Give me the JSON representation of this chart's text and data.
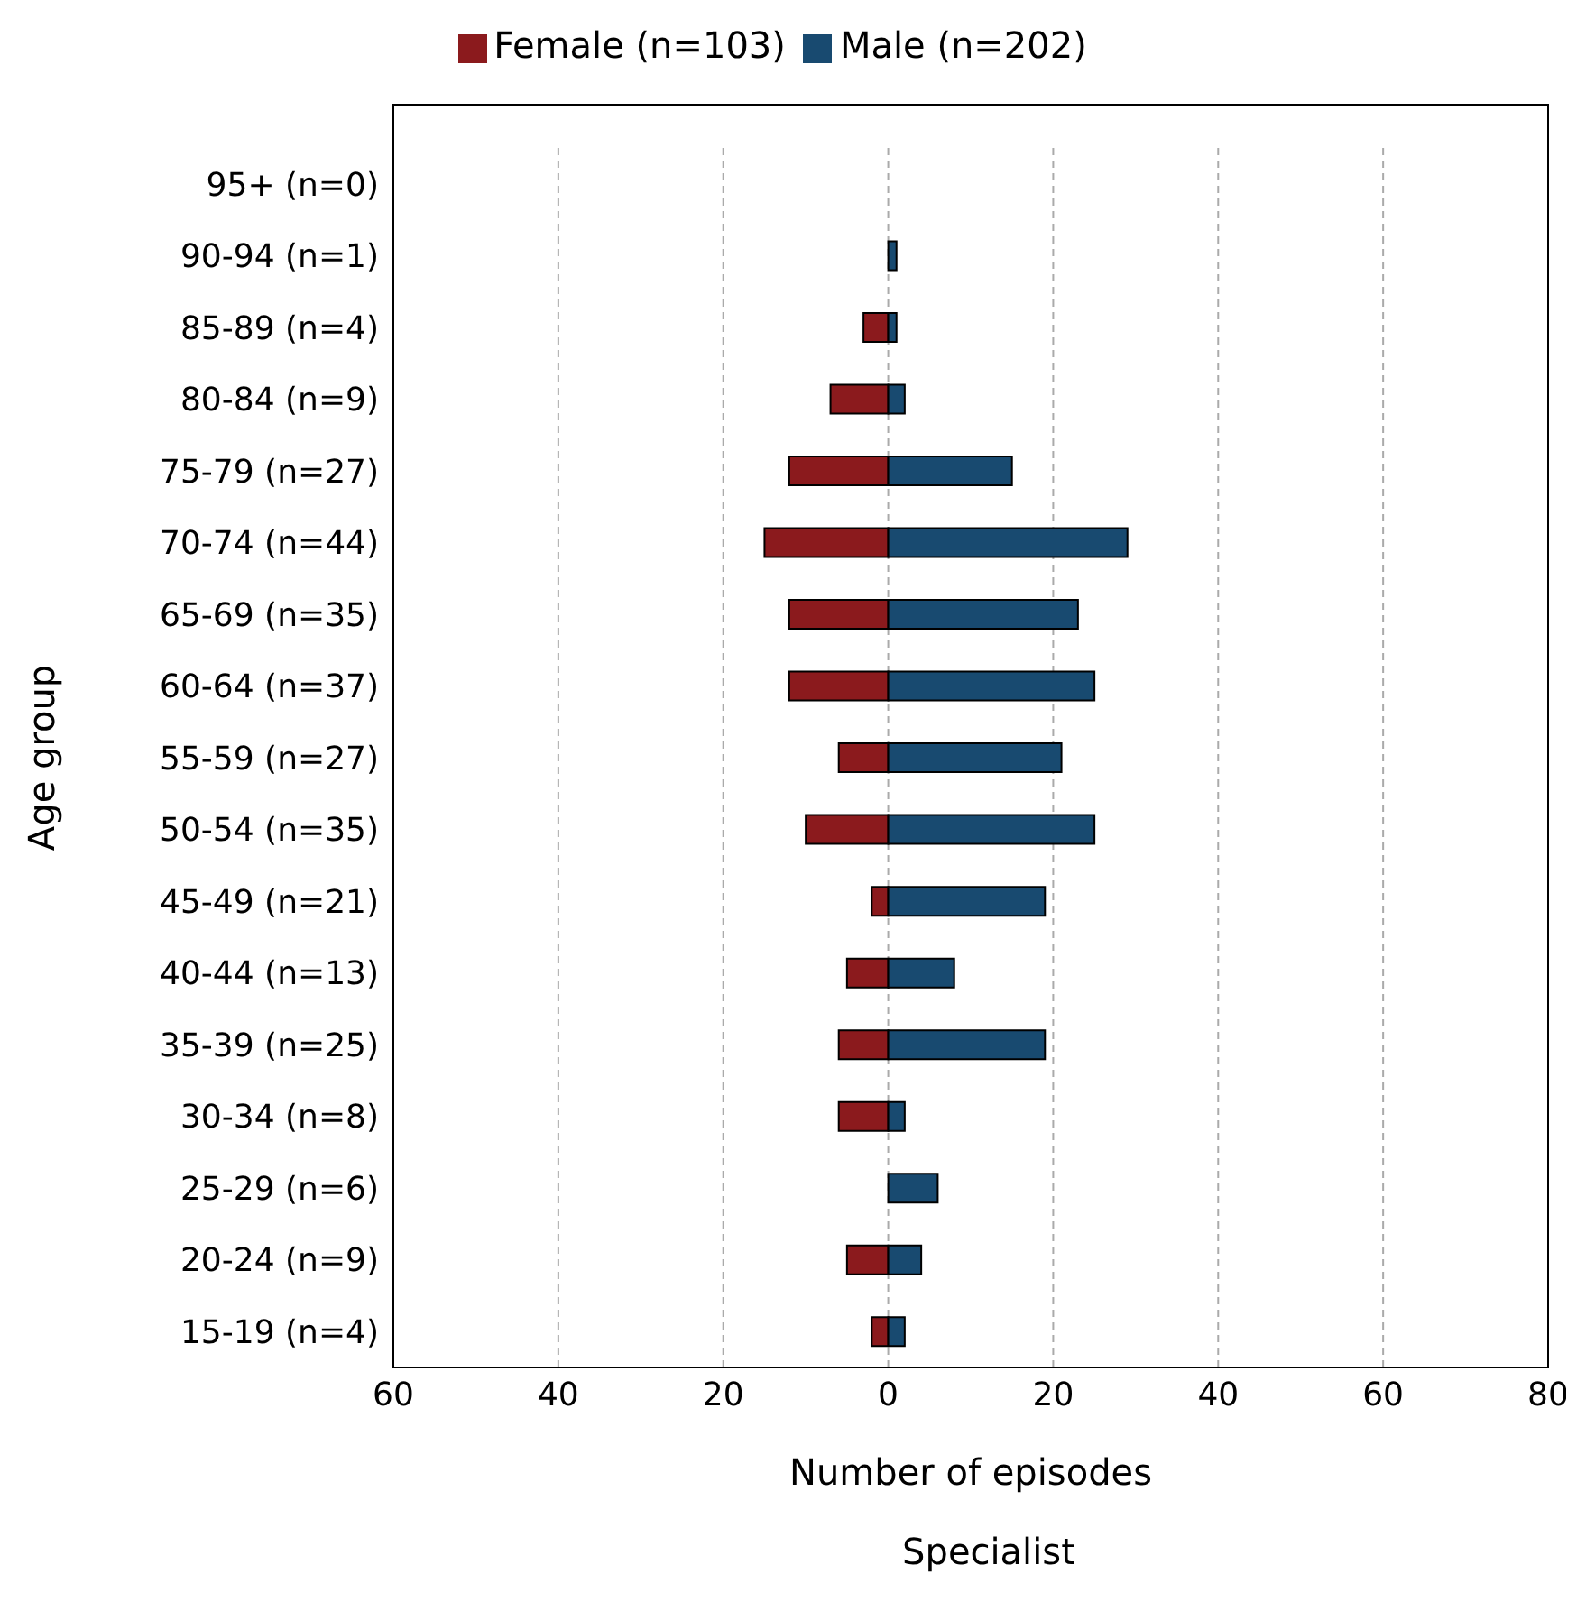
{
  "chart_data": {
    "type": "bar",
    "orientation": "horizontal",
    "stacked": true,
    "xlabel": "Number of episodes",
    "ylabel": "Age group",
    "annotations": [
      "Specialist"
    ],
    "categories": [
      "95+ (n=0)",
      "90-94 (n=1)",
      "85-89 (n=4)",
      "80-84 (n=9)",
      "75-79 (n=27)",
      "70-74 (n=44)",
      "65-69 (n=35)",
      "60-64 (n=37)",
      "55-59 (n=27)",
      "50-54 (n=35)",
      "45-49 (n=21)",
      "40-44 (n=13)",
      "35-39 (n=25)",
      "30-34 (n=8)",
      "25-29 (n=6)",
      "20-24 (n=9)",
      "15-19 (n=4)"
    ],
    "series": [
      {
        "name": "Female (n=103)",
        "color": "#8b1a1d",
        "values": [
          0,
          0,
          -3,
          -7,
          -12,
          -15,
          -12,
          -12,
          -6,
          -10,
          -2,
          -5,
          -6,
          -6,
          0,
          -5,
          -2
        ]
      },
      {
        "name": "Male (n=202)",
        "color": "#184a70",
        "values": [
          0,
          1,
          1,
          2,
          15,
          29,
          23,
          25,
          21,
          25,
          19,
          8,
          19,
          2,
          6,
          4,
          2
        ]
      }
    ],
    "xlim": [
      -60,
      80
    ],
    "xticks": [
      {
        "value": -60,
        "label": "60"
      },
      {
        "value": -40,
        "label": "40"
      },
      {
        "value": -20,
        "label": "20"
      },
      0,
      20,
      40,
      60,
      80
    ],
    "grid": "x",
    "legend": "top"
  }
}
